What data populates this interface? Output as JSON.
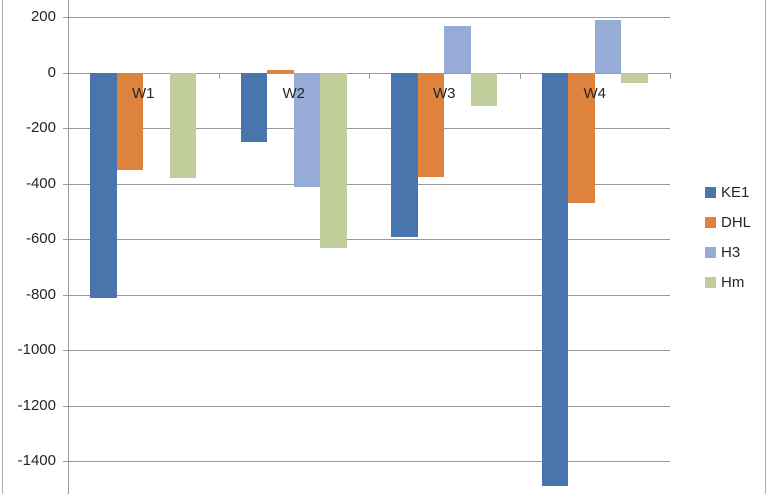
{
  "chart_data": {
    "type": "bar",
    "title": "",
    "xlabel": "",
    "ylabel": "",
    "categories": [
      "W1",
      "W2",
      "W3",
      "W4"
    ],
    "series": [
      {
        "name": "KE1",
        "color": "#4775ac",
        "values": [
          -810,
          -250,
          -590,
          -1490
        ]
      },
      {
        "name": "DHL",
        "color": "#dd833e",
        "values": [
          -350,
          10,
          -375,
          -470
        ]
      },
      {
        "name": "H3",
        "color": "#97abd7",
        "values": [
          0,
          -410,
          170,
          190
        ]
      },
      {
        "name": "Hm",
        "color": "#c0ce9c",
        "values": [
          -380,
          -630,
          -120,
          -35
        ]
      }
    ],
    "y_ticks": [
      200,
      0,
      -200,
      -400,
      -600,
      -800,
      -1000,
      -1200,
      -1400
    ],
    "ylim": [
      -1520,
      260
    ],
    "grid": true,
    "legend_position": "right"
  },
  "colors": {
    "gridline": "#9a9a9a",
    "axis": "#9a9a9a",
    "chart_border": "#adadb8",
    "text": "#262626",
    "background": "#ffffff"
  }
}
